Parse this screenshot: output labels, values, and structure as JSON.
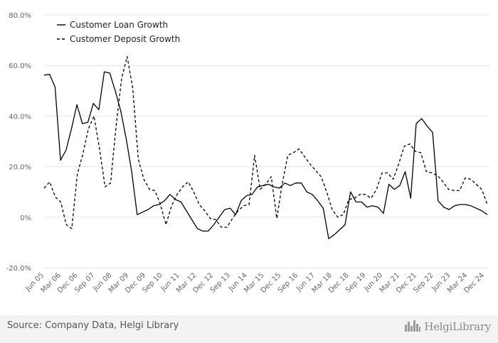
{
  "chart_data": {
    "type": "line",
    "title": "",
    "xlabel": "",
    "ylabel": "",
    "ylim": [
      -20,
      80
    ],
    "y_tick_labels": [
      "80.0%",
      "60.0%",
      "40.0%",
      "20.0%",
      "0%",
      "-20.0%"
    ],
    "y_tick_values": [
      80,
      60,
      40,
      20,
      0,
      -20
    ],
    "x_tick_labels": [
      "Jun 05",
      "Mar 06",
      "Dec 06",
      "Sep 07",
      "Jun 08",
      "Mar 09",
      "Dec 09",
      "Sep 10",
      "Jun 11",
      "Mar 12",
      "Dec 12",
      "Sep 13",
      "Jun 14",
      "Mar 15",
      "Dec 15",
      "Sep 16",
      "Jun 17",
      "Mar 18",
      "Dec 18",
      "Sep 19",
      "Jun 20",
      "Mar 21",
      "Dec 21",
      "Sep 22",
      "Jun 23",
      "Mar 24",
      "Dec 24"
    ],
    "legend_position": "top-left",
    "grid": true,
    "series": [
      {
        "name": "Customer Loan Growth",
        "style": "solid",
        "color": "#000000",
        "values": [
          56.2,
          56.5,
          51.5,
          22.5,
          26.5,
          35,
          44.5,
          37,
          37.5,
          45,
          42.5,
          57.5,
          57,
          50,
          42,
          31,
          18,
          1,
          2,
          3,
          4.5,
          5,
          6.5,
          9,
          7,
          6,
          2.5,
          -1,
          -4.5,
          -5.5,
          -5.5,
          -3,
          0,
          3,
          3.5,
          1,
          6.5,
          8.5,
          9,
          12,
          12.5,
          13,
          12,
          11.5,
          13.5,
          12.5,
          13.5,
          13.5,
          10,
          9,
          6.5,
          3.5,
          -8.5,
          -7,
          -5,
          -3,
          10,
          6,
          6,
          4,
          4.5,
          4,
          1.5,
          13,
          11,
          12.5,
          18,
          7.5,
          37,
          39,
          36,
          33.5,
          6.5,
          4,
          3,
          4.5,
          5,
          5,
          4.5,
          3.5,
          2.5,
          1
        ]
      },
      {
        "name": "Customer Deposit Growth",
        "style": "dashed",
        "color": "#000000",
        "values": [
          11.5,
          14,
          8,
          6,
          -3,
          -4.5,
          17,
          25,
          35,
          40,
          27,
          12,
          13.5,
          36,
          55,
          63.5,
          51,
          23,
          15,
          11,
          10.5,
          5,
          -3,
          4.5,
          9,
          12,
          14,
          10,
          5,
          2.5,
          -0.5,
          -1,
          -4,
          -4,
          -0.5,
          2.5,
          4.5,
          5,
          24.5,
          11,
          13,
          16,
          -0.5,
          13.5,
          24.5,
          25.5,
          27,
          24,
          21,
          18.5,
          16,
          10,
          3,
          0,
          1,
          7,
          7.5,
          9,
          9,
          7.5,
          11,
          17.5,
          17.5,
          15,
          21,
          28,
          29,
          26,
          25.5,
          18,
          17.5,
          16.5,
          14,
          11,
          10.5,
          10.5,
          15.5,
          15,
          13,
          11,
          5
        ]
      }
    ]
  },
  "footer": {
    "source": "Source: Company Data, Helgi Library",
    "logo_text": "HelgiLibrary",
    "logo_icon": "city-skyline-icon"
  }
}
